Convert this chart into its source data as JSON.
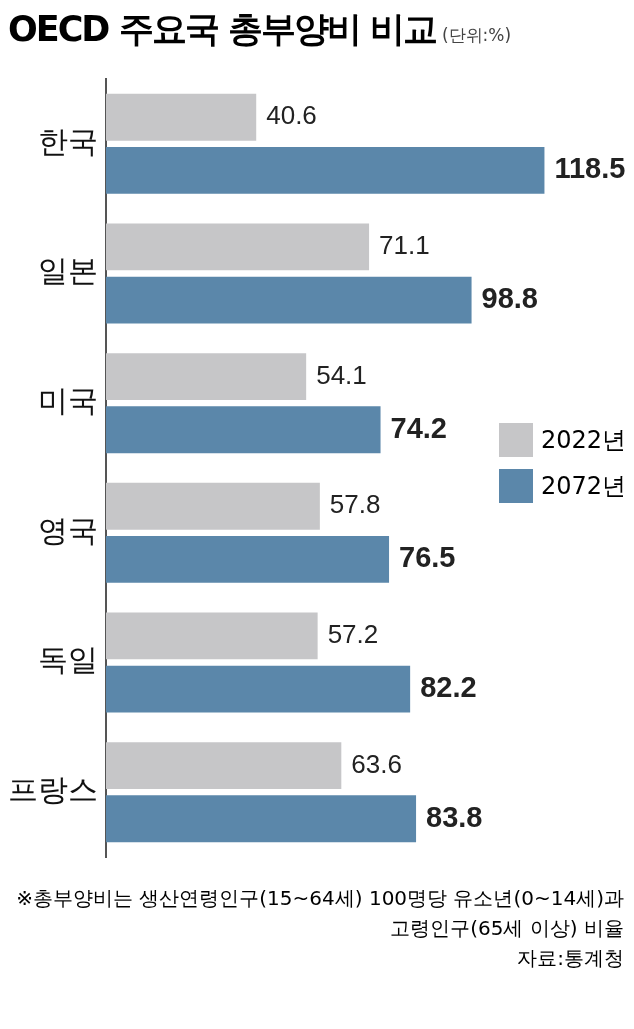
{
  "chart_data": {
    "type": "bar",
    "orientation": "horizontal",
    "title": "OECD 주요국 총부양비 비교",
    "subtitle": "(단위:%)",
    "categories": [
      "한국",
      "일본",
      "미국",
      "영국",
      "독일",
      "프랑스"
    ],
    "series": [
      {
        "name": "2022년",
        "color": "#c6c6c8",
        "values": [
          40.6,
          71.1,
          54.1,
          57.8,
          57.2,
          63.6
        ]
      },
      {
        "name": "2072년",
        "color": "#5b87aa",
        "values": [
          118.5,
          98.8,
          74.2,
          76.5,
          82.2,
          83.8
        ]
      }
    ],
    "data_labels": true,
    "legend": "right",
    "annotations": [
      "※총부양비는 생산연령인구(15~64세) 100명당 유소년(0~14세)과 고령인구(65세 이상) 비율",
      "자료:통계청"
    ]
  }
}
